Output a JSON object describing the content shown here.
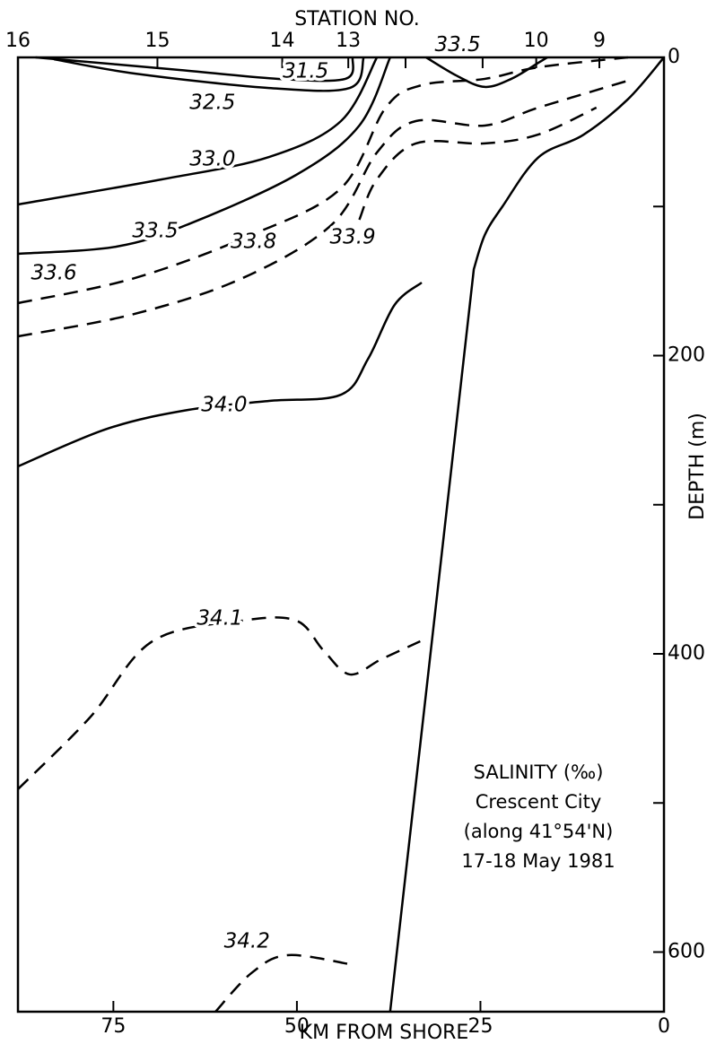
{
  "chart_data": {
    "type": "contour",
    "top_label": "STATION NO.",
    "xlabel": "KM FROM SHORE",
    "ylabel": "DEPTH (m)",
    "annotations": [
      "SALINITY (‰)",
      "Crescent City",
      "(along 41°54'N)",
      "17-18 May 1981"
    ],
    "xlim": [
      88,
      0
    ],
    "xticks": [
      75,
      50,
      25,
      0
    ],
    "ylim": [
      0,
      640
    ],
    "yticks": [
      0,
      200,
      400,
      600
    ],
    "minor_yticks": [
      100,
      300,
      500
    ],
    "color": "#000000",
    "stations": {
      "labels": [
        "16",
        "15",
        "14",
        "13",
        null,
        null,
        "10",
        "9"
      ],
      "x": [
        88,
        69,
        52,
        43,
        35.2,
        24.7,
        17.4,
        8.8
      ]
    },
    "bottom": {
      "x": [
        0,
        4.9,
        11,
        17.1,
        22,
        24.4,
        25.9,
        37.3
      ],
      "y": [
        0,
        28,
        52,
        67,
        100,
        119,
        142,
        640
      ]
    },
    "series": [
      {
        "name": "31.5",
        "style": "solid",
        "x": [
          85.6,
          66,
          52.5,
          43.4,
          42.4
        ],
        "y": [
          0,
          8.4,
          14.4,
          14.4,
          0
        ]
      },
      {
        "name": "32.5",
        "style": "solid",
        "x": [
          83.1,
          72.1,
          53.8,
          42.8,
          40.9
        ],
        "y": [
          1.2,
          10.8,
          20.5,
          20.5,
          0
        ]
      },
      {
        "name": "33.0",
        "style": "solid",
        "x": [
          88,
          68.4,
          53.8,
          44,
          39.1
        ],
        "y": [
          98.6,
          81.8,
          66.8,
          42.7,
          0
        ]
      },
      {
        "name": "33.5",
        "style": "solid",
        "x": [
          88,
          74.6,
          64.8,
          50.1,
          41.5,
          37.3
        ],
        "y": [
          131.7,
          126.9,
          111.9,
          78.8,
          45.7,
          0
        ]
      },
      {
        "name": "33.6",
        "style": "dashed",
        "x": [
          88,
          72.1,
          56.2,
          44,
          37.9,
          33,
          24.4,
          17.1,
          4.9
        ],
        "y": [
          164.8,
          148,
          119.1,
          87.8,
          33.7,
          18.6,
          14.4,
          6.6,
          0
        ]
      },
      {
        "name": "33.8",
        "style": "dashed",
        "x": [
          88,
          72.1,
          57.4,
          45.2,
          39.1,
          33.8,
          24.4,
          17.1,
          4.9
        ],
        "y": [
          187.1,
          172,
          148,
          111.9,
          63.8,
          42.7,
          45.7,
          33.7,
          15.6
        ]
      },
      {
        "name": "33.9",
        "style": "dashed",
        "x": [
          41.5,
          39.1,
          33.8,
          24.4,
          17.1,
          9.2
        ],
        "y": [
          108.9,
          81.8,
          57.7,
          57.7,
          51.7,
          33.7
        ]
      },
      {
        "name": "33.5",
        "style": "solid",
        "x": [
          32.4,
          28.1,
          24.4,
          20.8,
          17.1,
          15.9
        ],
        "y": [
          0,
          12.6,
          19.8,
          14.4,
          3.6,
          0
        ]
      },
      {
        "name": "34.0",
        "style": "solid",
        "x": [
          88,
          75.8,
          64.8,
          53.8,
          44,
          40.3,
          36.7,
          33
        ],
        "y": [
          274.3,
          249,
          236.4,
          230.4,
          226.2,
          202.1,
          166,
          151
        ]
      },
      {
        "name": "34.1",
        "style": "dashed",
        "x": [
          88,
          78.2,
          69.7,
          57.4,
          50.1,
          46.4,
          42.8,
          38.5,
          33.2
        ],
        "y": [
          490.8,
          442.7,
          391.6,
          377.7,
          377.7,
          397.6,
          413.8,
          403.6,
          391.6
        ]
      },
      {
        "name": "34.2",
        "style": "dashed",
        "x": [
          61.1,
          56.2,
          51.3,
          42.8
        ],
        "y": [
          640,
          614.1,
          602.1,
          608.1
        ]
      }
    ]
  }
}
